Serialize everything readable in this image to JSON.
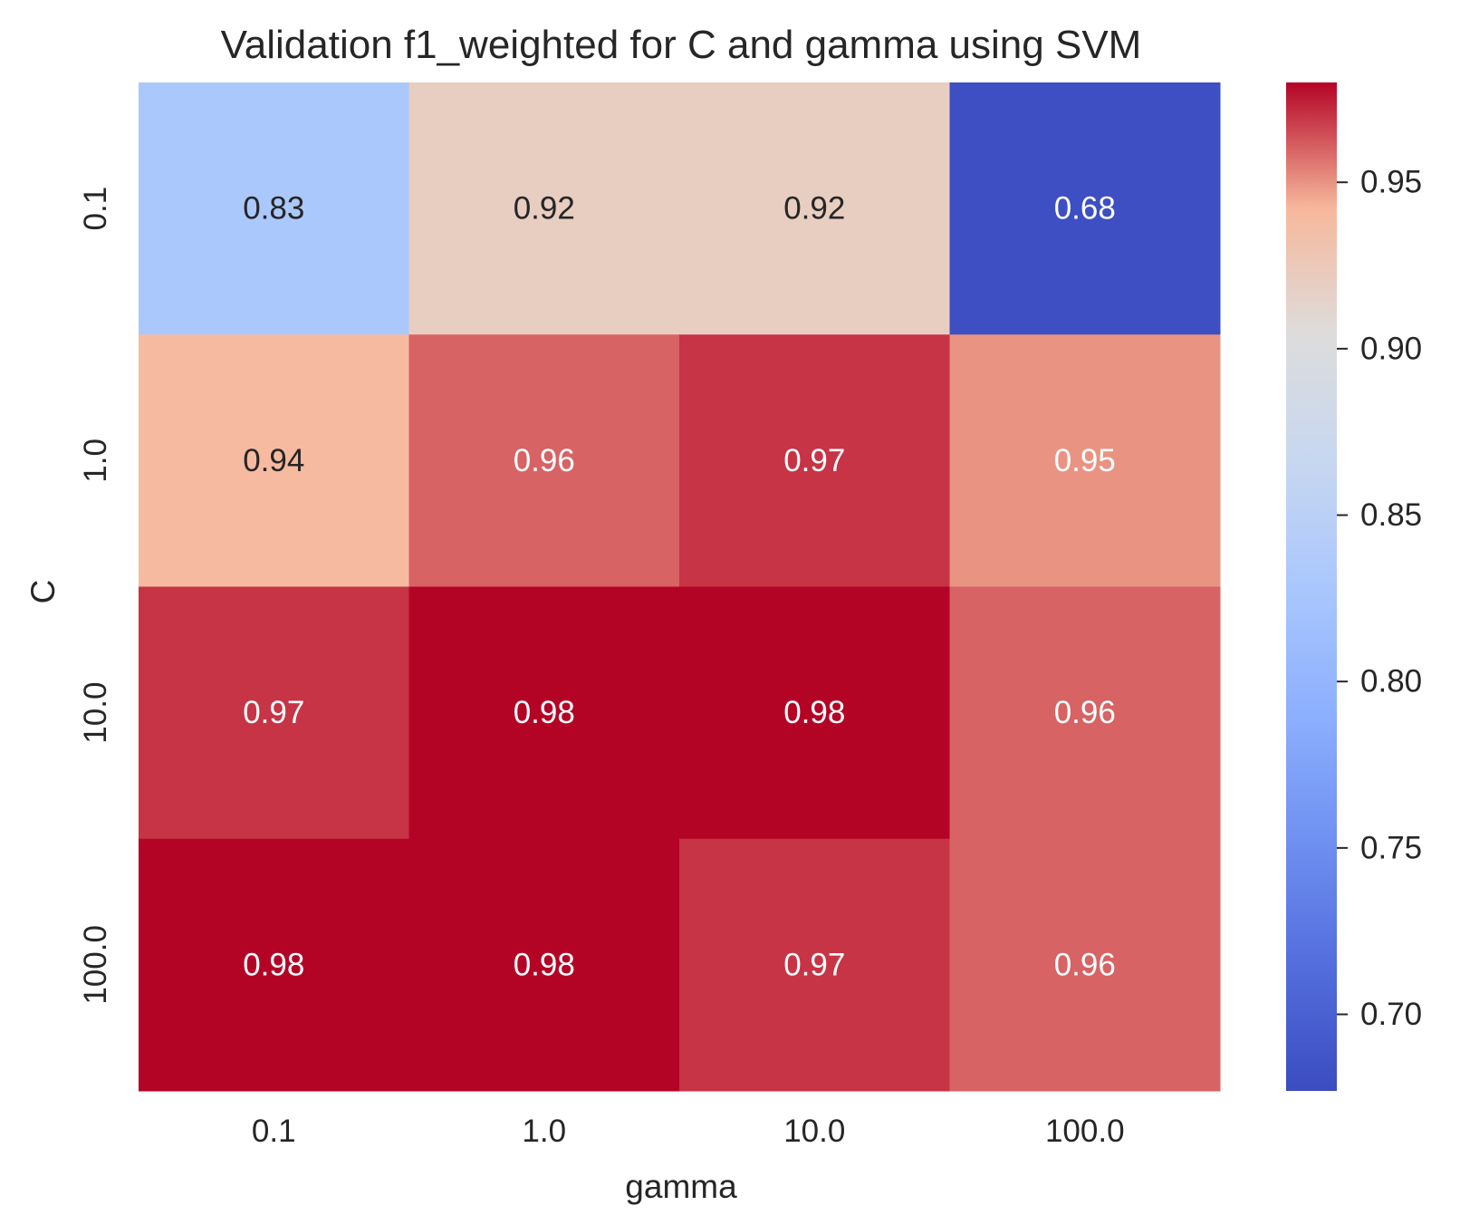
{
  "chart_data": {
    "type": "heatmap",
    "title": "Validation f1_weighted for C and gamma using SVM",
    "xlabel": "gamma",
    "ylabel": "C",
    "x_categories": [
      "0.1",
      "1.0",
      "10.0",
      "100.0"
    ],
    "y_categories": [
      "0.1",
      "1.0",
      "10.0",
      "100.0"
    ],
    "values": [
      [
        0.83,
        0.92,
        0.92,
        0.68
      ],
      [
        0.94,
        0.96,
        0.97,
        0.95
      ],
      [
        0.97,
        0.98,
        0.98,
        0.96
      ],
      [
        0.98,
        0.98,
        0.97,
        0.96
      ]
    ],
    "colormap": "coolwarm",
    "colorbar": {
      "range": [
        0.677,
        0.98
      ],
      "ticks": [
        0.7,
        0.75,
        0.8,
        0.85,
        0.9,
        0.95
      ],
      "tick_labels": [
        "0.70",
        "0.75",
        "0.80",
        "0.85",
        "0.90",
        "0.95"
      ]
    },
    "annotation_colors": {
      "dark": "#262626",
      "light": "#ffffff"
    }
  }
}
